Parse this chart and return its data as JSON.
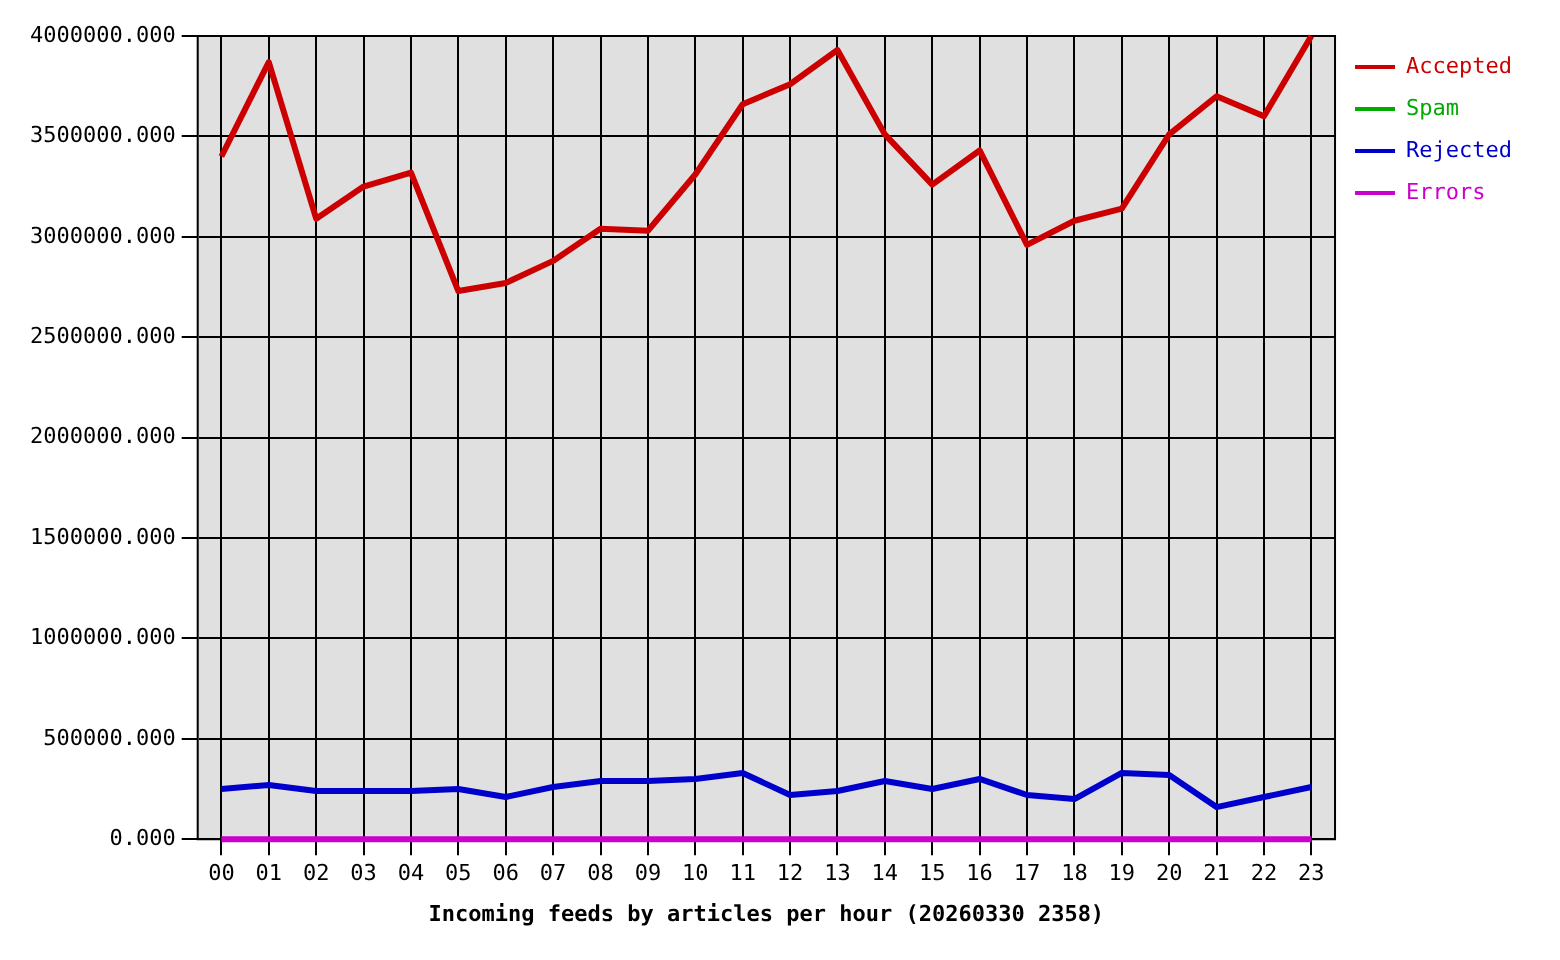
{
  "chart_data": {
    "type": "line",
    "xlabel": "Incoming feeds by articles per hour (20260330 2358)",
    "categories": [
      "00",
      "01",
      "02",
      "03",
      "04",
      "05",
      "06",
      "07",
      "08",
      "09",
      "10",
      "11",
      "12",
      "13",
      "14",
      "15",
      "16",
      "17",
      "18",
      "19",
      "20",
      "21",
      "22",
      "23"
    ],
    "series": [
      {
        "name": "Accepted",
        "color": "#cc0000",
        "values": [
          3400000,
          3870000,
          3090000,
          3250000,
          3320000,
          2730000,
          2770000,
          2880000,
          3040000,
          3030000,
          3310000,
          3660000,
          3760000,
          3930000,
          3510000,
          3260000,
          3430000,
          2960000,
          3080000,
          3140000,
          3510000,
          3700000,
          3600000,
          4000000
        ]
      },
      {
        "name": "Spam",
        "color": "#00aa00",
        "values": [
          null,
          null,
          null,
          null,
          null,
          null,
          null,
          null,
          null,
          null,
          null,
          null,
          null,
          null,
          null,
          null,
          null,
          null,
          null,
          null,
          null,
          null,
          null,
          null
        ]
      },
      {
        "name": "Rejected",
        "color": "#0000cc",
        "values": [
          250000,
          270000,
          240000,
          240000,
          240000,
          250000,
          210000,
          260000,
          290000,
          290000,
          300000,
          330000,
          220000,
          240000,
          290000,
          250000,
          300000,
          220000,
          200000,
          330000,
          320000,
          160000,
          210000,
          260000
        ]
      },
      {
        "name": "Errors",
        "color": "#cc00cc",
        "values": [
          0,
          0,
          0,
          0,
          0,
          0,
          0,
          0,
          0,
          0,
          0,
          0,
          0,
          0,
          0,
          0,
          0,
          0,
          0,
          0,
          0,
          0,
          0,
          0
        ]
      }
    ],
    "ylim": [
      0,
      4000000
    ],
    "yticks": [
      {
        "value": 0,
        "label": "0.000"
      },
      {
        "value": 500000,
        "label": "500000.000"
      },
      {
        "value": 1000000,
        "label": "1000000.000"
      },
      {
        "value": 1500000,
        "label": "1500000.000"
      },
      {
        "value": 2000000,
        "label": "2000000.000"
      },
      {
        "value": 2500000,
        "label": "2500000.000"
      },
      {
        "value": 3000000,
        "label": "3000000.000"
      },
      {
        "value": 3500000,
        "label": "3500000.000"
      },
      {
        "value": 4000000,
        "label": "4000000.000"
      }
    ],
    "grid": true,
    "legend": "top right"
  }
}
